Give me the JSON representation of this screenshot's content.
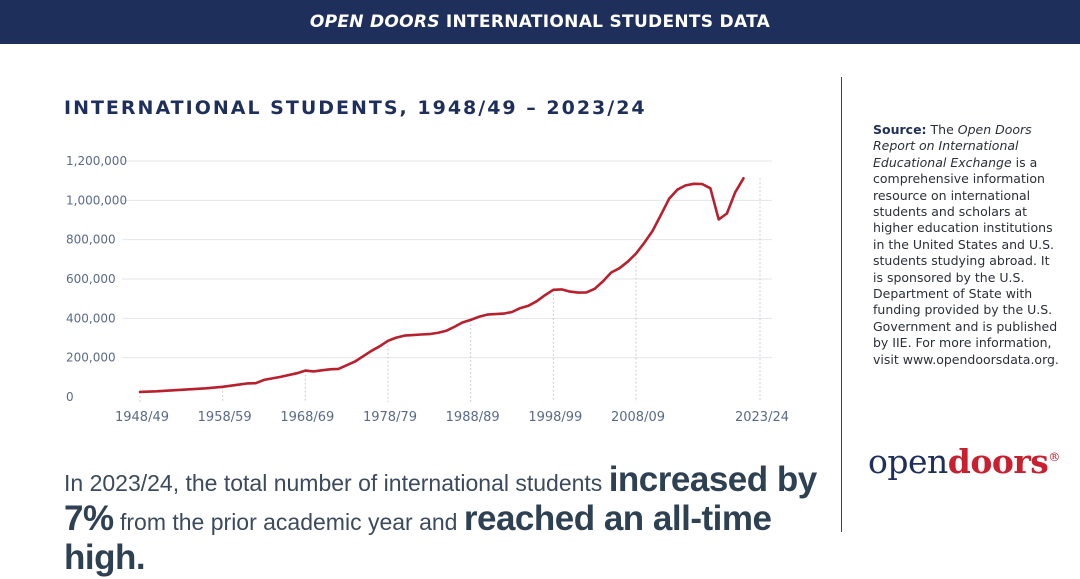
{
  "banner": {
    "title_italic": "OPEN DOORS",
    "title_rest": "INTERNATIONAL STUDENTS DATA"
  },
  "colors": {
    "navy": "#1f2f5c",
    "line": "#b8202e",
    "grid": "#e4e6ea",
    "accent_red": "#c8202f"
  },
  "chart_data": {
    "type": "line",
    "title": "INTERNATIONAL STUDENTS, 1948/49 – 2023/24",
    "xlabel": "",
    "ylabel": "",
    "ylim": [
      0,
      1200000
    ],
    "grid": true,
    "y_ticks": [
      {
        "value": 0,
        "label": "0"
      },
      {
        "value": 200000,
        "label": "200,000"
      },
      {
        "value": 400000,
        "label": "400,000"
      },
      {
        "value": 600000,
        "label": "600,000"
      },
      {
        "value": 800000,
        "label": "800,000"
      },
      {
        "value": 1000000,
        "label": "1,000,000"
      },
      {
        "value": 1200000,
        "label": "1,200,000"
      }
    ],
    "x_ticks": [
      {
        "year": 1948,
        "label": "1948/49"
      },
      {
        "year": 1958,
        "label": "1958/59"
      },
      {
        "year": 1968,
        "label": "1968/69"
      },
      {
        "year": 1978,
        "label": "1978/79"
      },
      {
        "year": 1988,
        "label": "1988/89"
      },
      {
        "year": 1998,
        "label": "1998/99"
      },
      {
        "year": 2008,
        "label": "2008/09"
      },
      {
        "year": 2023,
        "label": "2023/24"
      }
    ],
    "series": [
      {
        "name": "",
        "points": [
          [
            1948,
            26000
          ],
          [
            1950,
            29000
          ],
          [
            1952,
            34000
          ],
          [
            1954,
            39000
          ],
          [
            1956,
            44000
          ],
          [
            1958,
            52000
          ],
          [
            1960,
            63000
          ],
          [
            1961,
            69000
          ],
          [
            1962,
            70000
          ],
          [
            1963,
            87000
          ],
          [
            1965,
            102000
          ],
          [
            1967,
            121000
          ],
          [
            1968,
            134000
          ],
          [
            1969,
            130000
          ],
          [
            1970,
            136000
          ],
          [
            1971,
            141000
          ],
          [
            1972,
            143000
          ],
          [
            1974,
            180000
          ],
          [
            1976,
            235000
          ],
          [
            1977,
            258000
          ],
          [
            1978,
            286000
          ],
          [
            1979,
            302000
          ],
          [
            1980,
            312000
          ],
          [
            1981,
            315000
          ],
          [
            1982,
            318000
          ],
          [
            1983,
            320000
          ],
          [
            1984,
            326000
          ],
          [
            1985,
            336000
          ],
          [
            1986,
            356000
          ],
          [
            1987,
            379000
          ],
          [
            1988,
            392000
          ],
          [
            1989,
            408000
          ],
          [
            1990,
            419000
          ],
          [
            1992,
            424000
          ],
          [
            1993,
            432000
          ],
          [
            1994,
            452000
          ],
          [
            1995,
            464000
          ],
          [
            1996,
            487000
          ],
          [
            1997,
            518000
          ],
          [
            1998,
            545000
          ],
          [
            1999,
            547000
          ],
          [
            2000,
            536000
          ],
          [
            2001,
            531000
          ],
          [
            2002,
            532000
          ],
          [
            2003,
            550000
          ],
          [
            2004,
            588000
          ],
          [
            2005,
            633000
          ],
          [
            2006,
            655000
          ],
          [
            2007,
            688000
          ],
          [
            2008,
            729000
          ],
          [
            2009,
            784000
          ],
          [
            2010,
            844000
          ],
          [
            2011,
            925000
          ],
          [
            2012,
            1008000
          ],
          [
            2013,
            1054000
          ],
          [
            2014,
            1076000
          ],
          [
            2015,
            1084000
          ],
          [
            2016,
            1083000
          ],
          [
            2017,
            1061000
          ],
          [
            2018,
            903000
          ],
          [
            2019,
            933000
          ],
          [
            2020,
            1041000
          ],
          [
            2021,
            1112000
          ]
        ]
      }
    ]
  },
  "summary": {
    "part1": "In 2023/24, the total number of international students ",
    "bold1": "increased by 7%",
    "part2": " from the prior academic year and ",
    "bold2": "reached an all-time high."
  },
  "source": {
    "label": "Source:",
    "t1": " The ",
    "italic1": "Open Doors Report on International Educational Exchange",
    "t2": " is a comprehensive information resource on international students and scholars at higher education institutions in the United States and U.S. students studying abroad. It is sponsored by the U.S. Department of State with funding provided by the U.S. Government and is published by IIE. For more information, visit www.opendoorsdata.org."
  },
  "logo": {
    "open": "open",
    "doors": "doors",
    "reg": "®"
  }
}
